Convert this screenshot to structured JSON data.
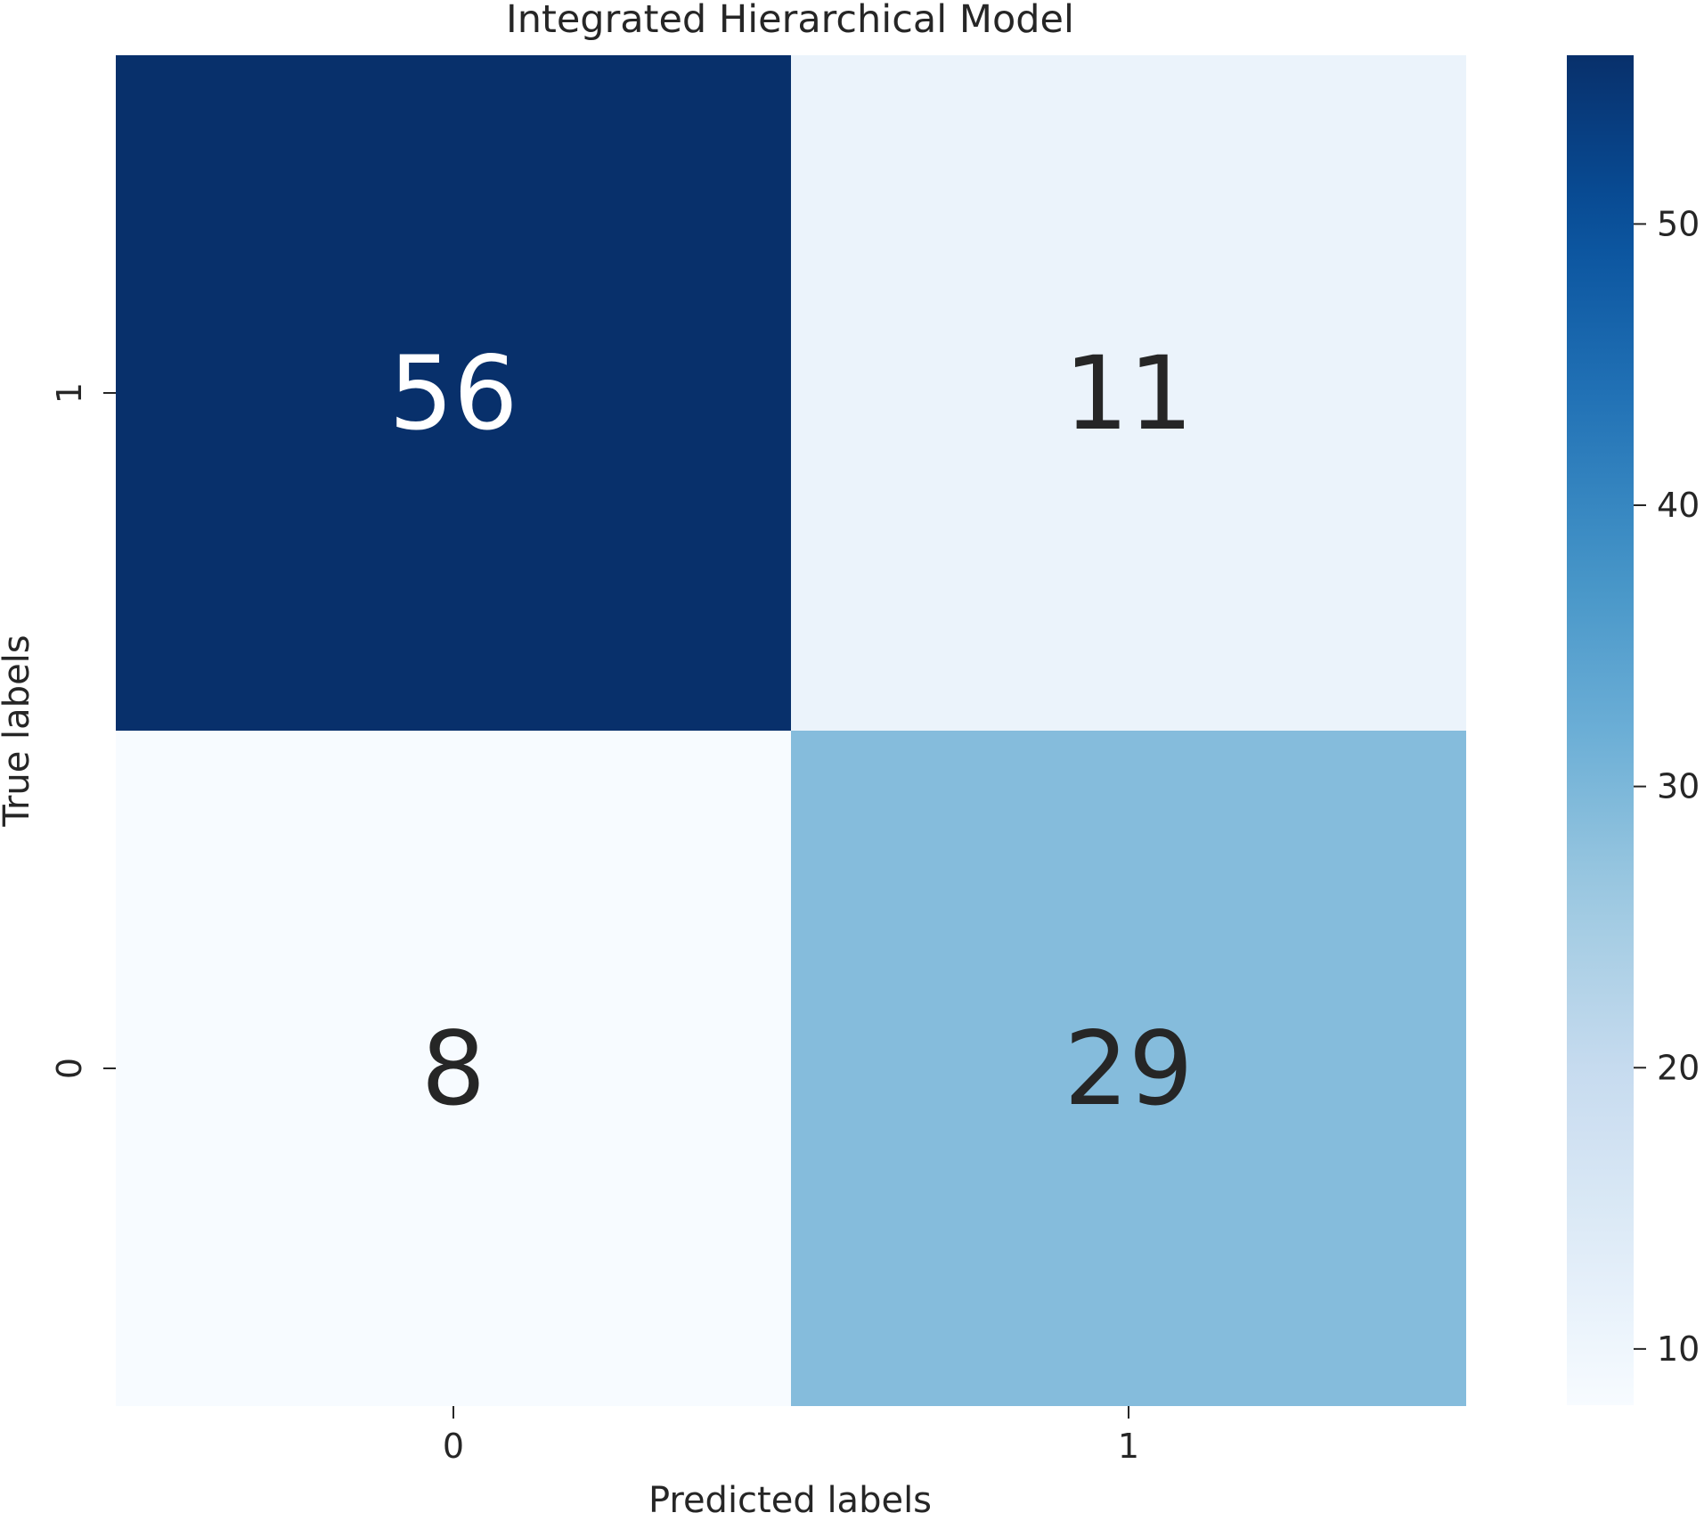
{
  "chart_data": {
    "type": "heatmap",
    "title": "Integrated Hierarchical Model",
    "xlabel": "Predicted labels",
    "ylabel": "True labels",
    "x_categories": [
      "0",
      "1"
    ],
    "y_categories": [
      "1",
      "0"
    ],
    "values": [
      [
        56,
        11
      ],
      [
        8,
        29
      ]
    ],
    "colormap": "Blues",
    "color_range": [
      8,
      56
    ],
    "colorbar_ticks": [
      10,
      20,
      30,
      40,
      50
    ],
    "colorbar_tick_labels": [
      "10",
      "20",
      "30",
      "40",
      "50"
    ]
  }
}
